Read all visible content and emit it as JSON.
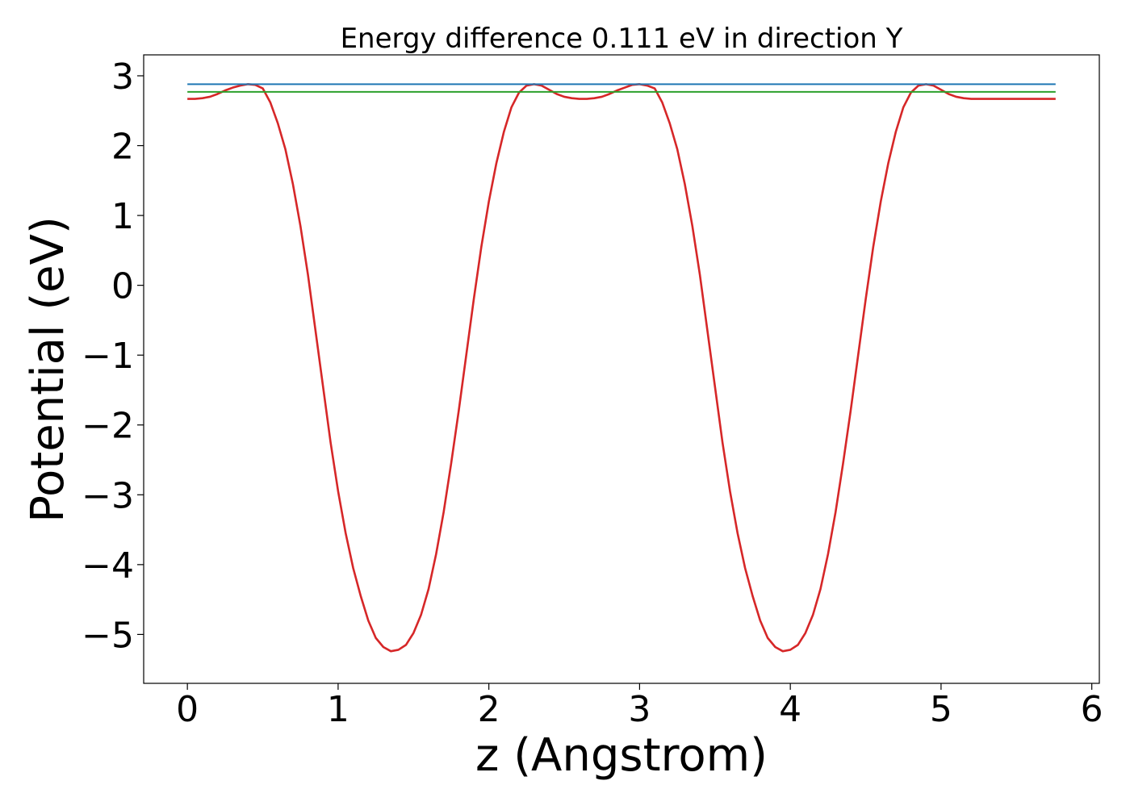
{
  "chart_data": {
    "type": "line",
    "title": "Energy difference 0.111 eV in direction Y",
    "xlabel": "z (Angstrom)",
    "ylabel": "Potential (eV)",
    "xlim": [
      -0.29,
      6.05
    ],
    "ylim": [
      -5.7,
      3.3
    ],
    "x_ticks": [
      0,
      1,
      2,
      3,
      4,
      5,
      6
    ],
    "x_tick_labels": [
      "0",
      "1",
      "2",
      "3",
      "4",
      "5",
      "6"
    ],
    "y_ticks": [
      3,
      2,
      1,
      0,
      -1,
      -2,
      -3,
      -4,
      -5
    ],
    "y_tick_labels": [
      "3",
      "2",
      "1",
      "0",
      "−1",
      "−2",
      "−3",
      "−4",
      "−5"
    ],
    "grid": false,
    "legend": "none",
    "series": [
      {
        "kind": "potential-curve",
        "color": "#d62728",
        "x": [
          0.0,
          0.05,
          0.1,
          0.15,
          0.2,
          0.25,
          0.3,
          0.35,
          0.4,
          0.45,
          0.5,
          0.55,
          0.6,
          0.65,
          0.7,
          0.75,
          0.8,
          0.85,
          0.9,
          0.95,
          1.0,
          1.05,
          1.1,
          1.15,
          1.2,
          1.25,
          1.3,
          1.35,
          1.4,
          1.45,
          1.5,
          1.55,
          1.6,
          1.65,
          1.7,
          1.75,
          1.8,
          1.85,
          1.9,
          1.95,
          2.0,
          2.05,
          2.1,
          2.15,
          2.2,
          2.25,
          2.3,
          2.35,
          2.4,
          2.45,
          2.5,
          2.55,
          2.6,
          2.65,
          2.7,
          2.75,
          2.8,
          2.85,
          2.9,
          2.95,
          3.0,
          3.05,
          3.1,
          3.15,
          3.2,
          3.25,
          3.3,
          3.35,
          3.4,
          3.45,
          3.5,
          3.55,
          3.6,
          3.65,
          3.7,
          3.75,
          3.8,
          3.85,
          3.9,
          3.95,
          4.0,
          4.05,
          4.1,
          4.15,
          4.2,
          4.25,
          4.3,
          4.35,
          4.4,
          4.45,
          4.5,
          4.55,
          4.6,
          4.65,
          4.7,
          4.75,
          4.8,
          4.85,
          4.9,
          4.95,
          5.0,
          5.05,
          5.1,
          5.15,
          5.2,
          5.25,
          5.3,
          5.35,
          5.4,
          5.45,
          5.5,
          5.55,
          5.6,
          5.65,
          5.7,
          5.76
        ],
        "y": [
          2.67,
          2.67,
          2.68,
          2.7,
          2.74,
          2.79,
          2.83,
          2.86,
          2.88,
          2.87,
          2.82,
          2.62,
          2.32,
          1.95,
          1.45,
          0.85,
          0.15,
          -0.65,
          -1.45,
          -2.25,
          -2.95,
          -3.55,
          -4.05,
          -4.45,
          -4.8,
          -5.05,
          -5.18,
          -5.24,
          -5.22,
          -5.15,
          -4.98,
          -4.72,
          -4.35,
          -3.85,
          -3.25,
          -2.55,
          -1.8,
          -1.0,
          -0.2,
          0.55,
          1.2,
          1.75,
          2.2,
          2.55,
          2.76,
          2.86,
          2.88,
          2.86,
          2.8,
          2.74,
          2.7,
          2.68,
          2.67,
          2.67,
          2.68,
          2.7,
          2.74,
          2.79,
          2.83,
          2.87,
          2.88,
          2.86,
          2.82,
          2.62,
          2.32,
          1.95,
          1.45,
          0.85,
          0.15,
          -0.65,
          -1.45,
          -2.25,
          -2.95,
          -3.55,
          -4.05,
          -4.45,
          -4.8,
          -5.05,
          -5.18,
          -5.24,
          -5.22,
          -5.15,
          -4.98,
          -4.72,
          -4.35,
          -3.85,
          -3.25,
          -2.55,
          -1.8,
          -1.0,
          -0.2,
          0.55,
          1.2,
          1.75,
          2.2,
          2.55,
          2.76,
          2.86,
          2.88,
          2.86,
          2.8,
          2.74,
          2.7,
          2.68,
          2.67,
          2.67,
          2.67,
          2.67,
          2.67,
          2.67,
          2.67,
          2.67,
          2.67,
          2.67,
          2.67,
          2.67
        ]
      },
      {
        "kind": "hline",
        "color": "#1f77b4",
        "x": [
          0.0,
          5.76
        ],
        "y": [
          2.88,
          2.88
        ]
      },
      {
        "kind": "hline",
        "color": "#2ca02c",
        "x": [
          0.0,
          5.76
        ],
        "y": [
          2.77,
          2.77
        ]
      }
    ]
  }
}
